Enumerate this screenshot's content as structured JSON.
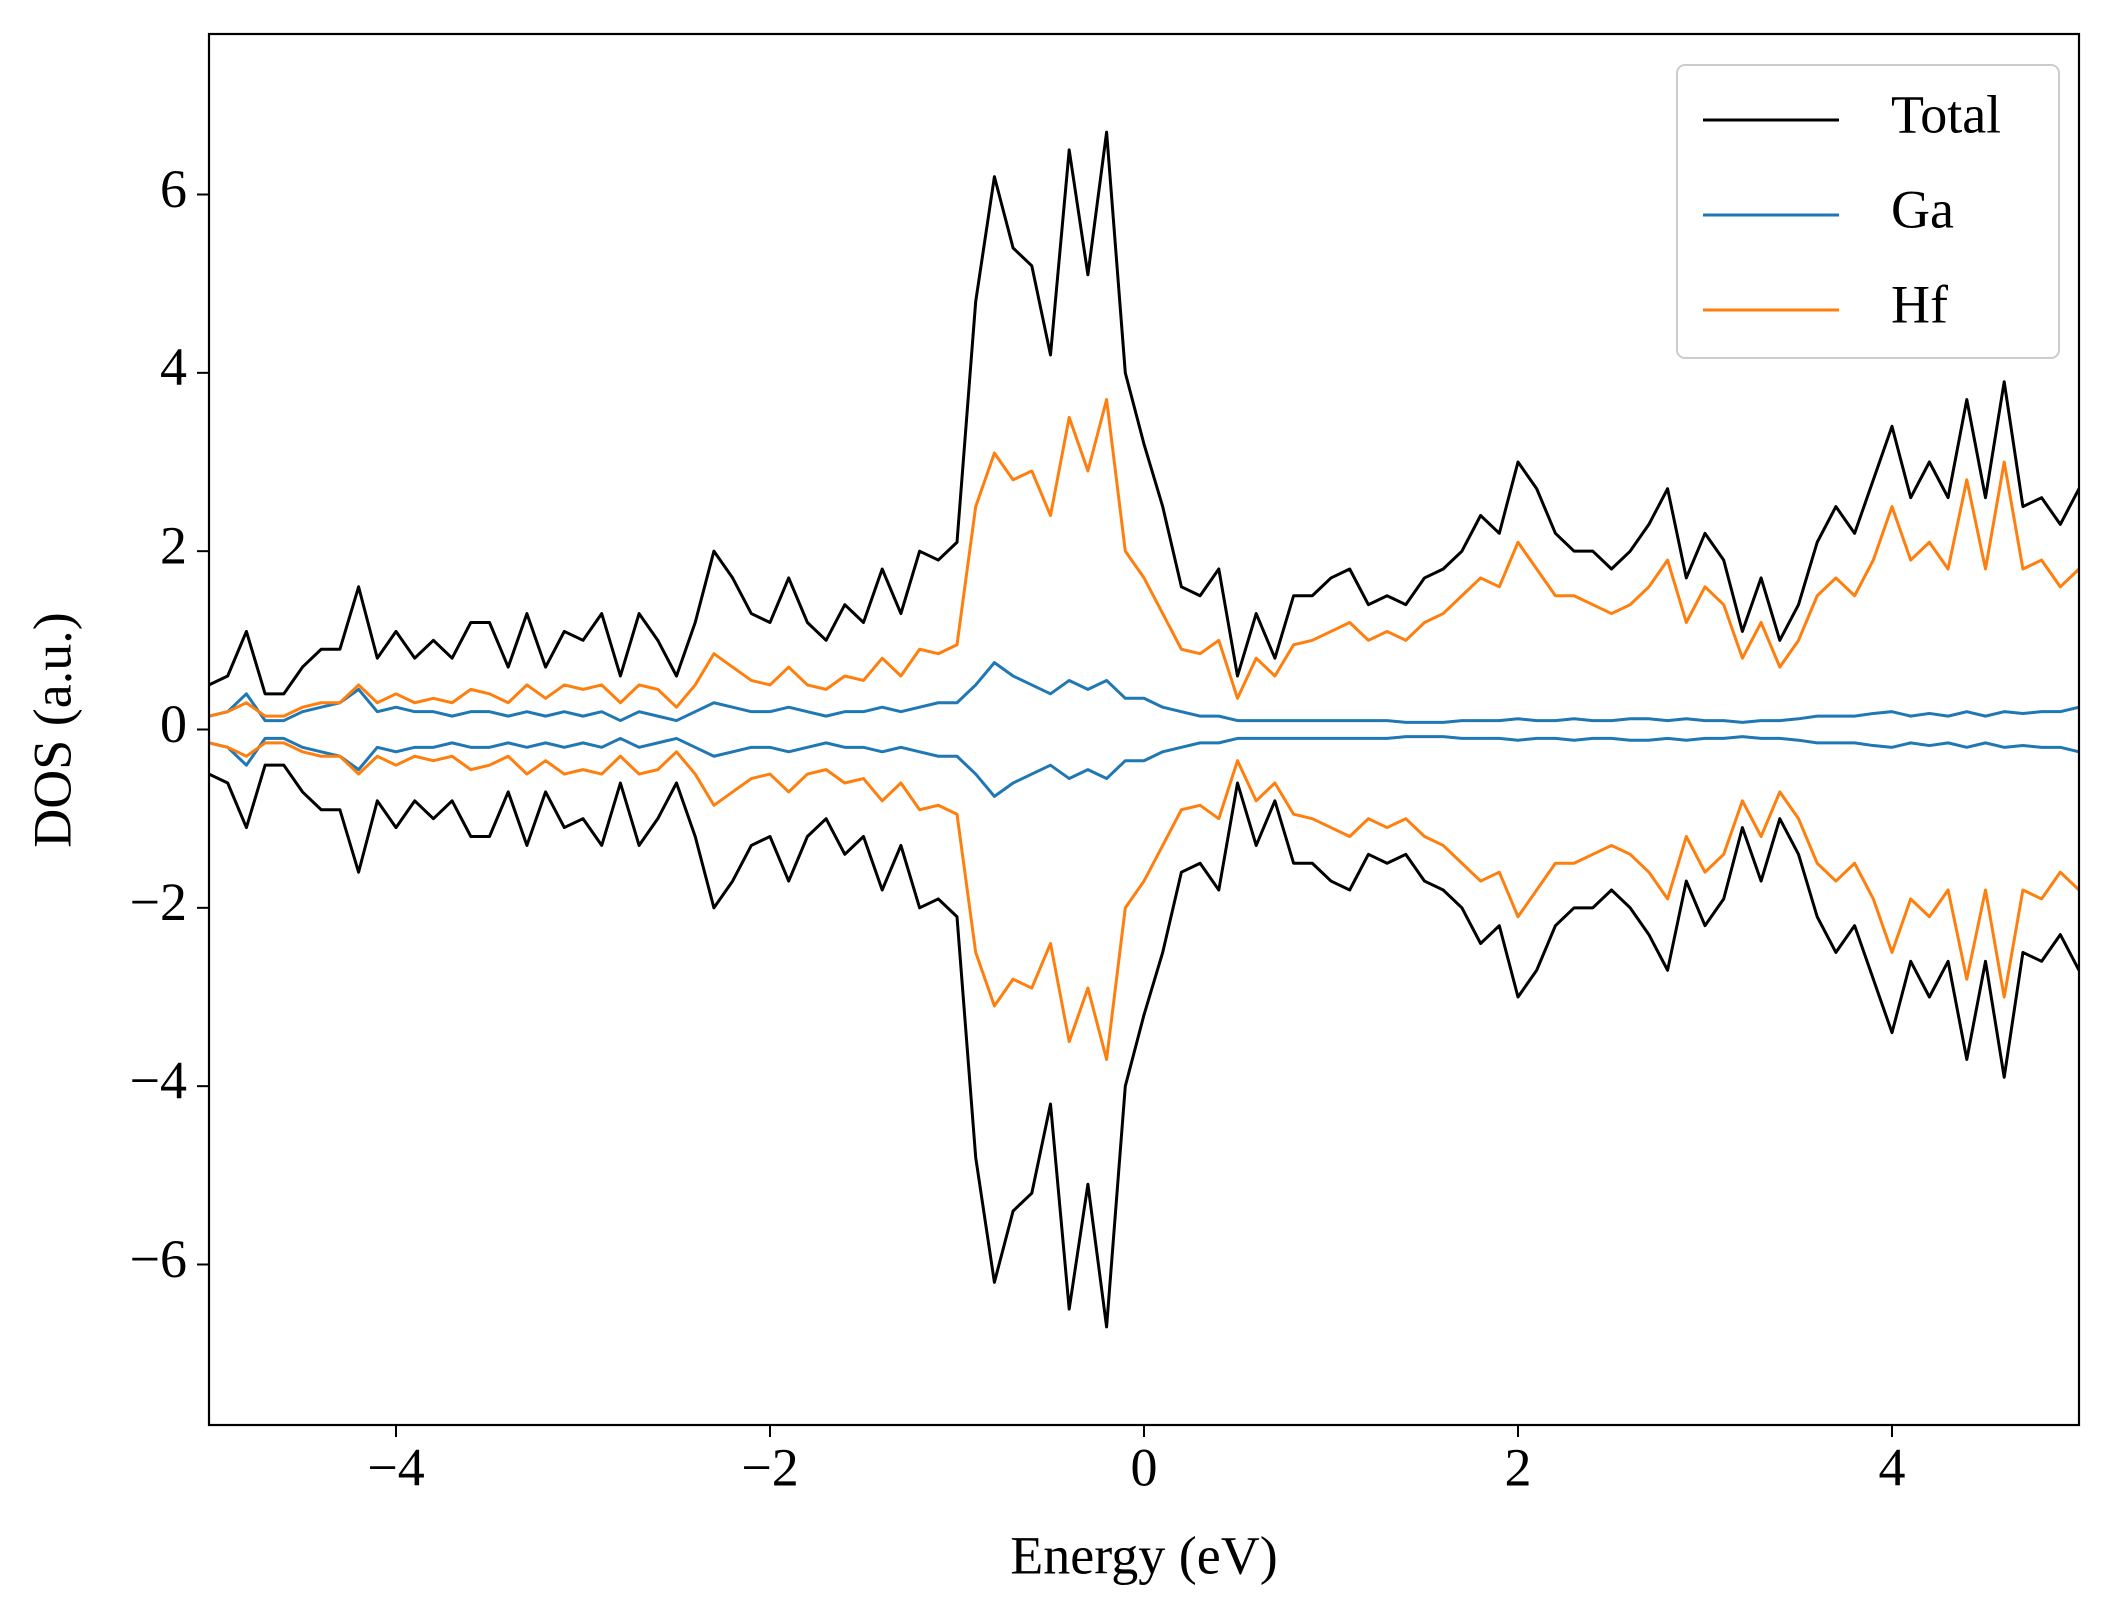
{
  "chart_data": {
    "type": "line",
    "xlabel": "Energy (eV)",
    "ylabel": "DOS (a.u.)",
    "xlim": [
      -5,
      5
    ],
    "ylim": [
      -7.8,
      7.8
    ],
    "xticks": [
      {
        "value": -4,
        "label": "−4"
      },
      {
        "value": -2,
        "label": "−2"
      },
      0,
      2,
      4
    ],
    "yticks": [
      {
        "value": -6,
        "label": "−6"
      },
      {
        "value": -4,
        "label": "−4"
      },
      {
        "value": -2,
        "label": "−2"
      },
      0,
      2,
      4,
      6
    ],
    "legend": "upper right",
    "grid": false,
    "x": [
      -5,
      -4.9,
      -4.8,
      -4.7,
      -4.6,
      -4.5,
      -4.4,
      -4.3,
      -4.2,
      -4.1,
      -4,
      -3.9,
      -3.8,
      -3.7,
      -3.6,
      -3.5,
      -3.4,
      -3.3,
      -3.2,
      -3.1,
      -3,
      -2.9,
      -2.8,
      -2.7,
      -2.6,
      -2.5,
      -2.4,
      -2.3,
      -2.2,
      -2.1,
      -2,
      -1.9,
      -1.8,
      -1.7,
      -1.6,
      -1.5,
      -1.4,
      -1.3,
      -1.2,
      -1.1,
      -1,
      -0.9,
      -0.8,
      -0.7,
      -0.6,
      -0.5,
      -0.4,
      -0.3,
      -0.2,
      -0.1,
      0,
      0.1,
      0.2,
      0.3,
      0.4,
      0.5,
      0.6,
      0.7,
      0.8,
      0.9,
      1,
      1.1,
      1.2,
      1.3,
      1.4,
      1.5,
      1.6,
      1.7,
      1.8,
      1.9,
      2,
      2.1,
      2.2,
      2.3,
      2.4,
      2.5,
      2.6,
      2.7,
      2.8,
      2.9,
      3,
      3.1,
      3.2,
      3.3,
      3.4,
      3.5,
      3.6,
      3.7,
      3.8,
      3.9,
      4,
      4.1,
      4.2,
      4.3,
      4.4,
      4.5,
      4.6,
      4.7,
      4.8,
      4.9,
      5
    ],
    "series": [
      {
        "name": "Total",
        "color": "#000000",
        "values": [
          0.5,
          0.6,
          1.1,
          0.4,
          0.4,
          0.7,
          0.9,
          0.9,
          1.6,
          0.8,
          1.1,
          0.8,
          1.0,
          0.8,
          1.2,
          1.2,
          0.7,
          1.3,
          0.7,
          1.1,
          1.0,
          1.3,
          0.6,
          1.3,
          1.0,
          0.6,
          1.2,
          2.0,
          1.7,
          1.3,
          1.2,
          1.7,
          1.2,
          1.0,
          1.4,
          1.2,
          1.8,
          1.3,
          2.0,
          1.9,
          2.1,
          4.8,
          6.2,
          5.4,
          5.2,
          4.2,
          6.5,
          5.1,
          6.7,
          4.0,
          3.2,
          2.5,
          1.6,
          1.5,
          1.8,
          0.6,
          1.3,
          0.8,
          1.5,
          1.5,
          1.7,
          1.8,
          1.4,
          1.5,
          1.4,
          1.7,
          1.8,
          2.0,
          2.4,
          2.2,
          3.0,
          2.7,
          2.2,
          2.0,
          2.0,
          1.8,
          2.0,
          2.3,
          2.7,
          1.7,
          2.2,
          1.9,
          1.1,
          1.7,
          1.0,
          1.4,
          2.1,
          2.5,
          2.2,
          2.8,
          3.4,
          2.6,
          3.0,
          2.6,
          3.7,
          2.6,
          3.9,
          2.5,
          2.6,
          2.3,
          2.7
        ],
        "down": [
          -0.5,
          -0.6,
          -1.1,
          -0.4,
          -0.4,
          -0.7,
          -0.9,
          -0.9,
          -1.6,
          -0.8,
          -1.1,
          -0.8,
          -1.0,
          -0.8,
          -1.2,
          -1.2,
          -0.7,
          -1.3,
          -0.7,
          -1.1,
          -1.0,
          -1.3,
          -0.6,
          -1.3,
          -1.0,
          -0.6,
          -1.2,
          -2.0,
          -1.7,
          -1.3,
          -1.2,
          -1.7,
          -1.2,
          -1.0,
          -1.4,
          -1.2,
          -1.8,
          -1.3,
          -2.0,
          -1.9,
          -2.1,
          -4.8,
          -6.2,
          -5.4,
          -5.2,
          -4.2,
          -6.5,
          -5.1,
          -6.7,
          -4.0,
          -3.2,
          -2.5,
          -1.6,
          -1.5,
          -1.8,
          -0.6,
          -1.3,
          -0.8,
          -1.5,
          -1.5,
          -1.7,
          -1.8,
          -1.4,
          -1.5,
          -1.4,
          -1.7,
          -1.8,
          -2.0,
          -2.4,
          -2.2,
          -3.0,
          -2.7,
          -2.2,
          -2.0,
          -2.0,
          -1.8,
          -2.0,
          -2.3,
          -2.7,
          -1.7,
          -2.2,
          -1.9,
          -1.1,
          -1.7,
          -1.0,
          -1.4,
          -2.1,
          -2.5,
          -2.2,
          -2.8,
          -3.4,
          -2.6,
          -3.0,
          -2.6,
          -3.7,
          -2.6,
          -3.9,
          -2.5,
          -2.6,
          -2.3,
          -2.7
        ]
      },
      {
        "name": "Ga",
        "color": "#1f77b4",
        "values": [
          0.15,
          0.2,
          0.4,
          0.1,
          0.1,
          0.2,
          0.25,
          0.3,
          0.45,
          0.2,
          0.25,
          0.2,
          0.2,
          0.15,
          0.2,
          0.2,
          0.15,
          0.2,
          0.15,
          0.2,
          0.15,
          0.2,
          0.1,
          0.2,
          0.15,
          0.1,
          0.2,
          0.3,
          0.25,
          0.2,
          0.2,
          0.25,
          0.2,
          0.15,
          0.2,
          0.2,
          0.25,
          0.2,
          0.25,
          0.3,
          0.3,
          0.5,
          0.75,
          0.6,
          0.5,
          0.4,
          0.55,
          0.45,
          0.55,
          0.35,
          0.35,
          0.25,
          0.2,
          0.15,
          0.15,
          0.1,
          0.1,
          0.1,
          0.1,
          0.1,
          0.1,
          0.1,
          0.1,
          0.1,
          0.08,
          0.08,
          0.08,
          0.1,
          0.1,
          0.1,
          0.12,
          0.1,
          0.1,
          0.12,
          0.1,
          0.1,
          0.12,
          0.12,
          0.1,
          0.12,
          0.1,
          0.1,
          0.08,
          0.1,
          0.1,
          0.12,
          0.15,
          0.15,
          0.15,
          0.18,
          0.2,
          0.15,
          0.18,
          0.15,
          0.2,
          0.15,
          0.2,
          0.18,
          0.2,
          0.2,
          0.25
        ],
        "down": [
          -0.15,
          -0.2,
          -0.4,
          -0.1,
          -0.1,
          -0.2,
          -0.25,
          -0.3,
          -0.45,
          -0.2,
          -0.25,
          -0.2,
          -0.2,
          -0.15,
          -0.2,
          -0.2,
          -0.15,
          -0.2,
          -0.15,
          -0.2,
          -0.15,
          -0.2,
          -0.1,
          -0.2,
          -0.15,
          -0.1,
          -0.2,
          -0.3,
          -0.25,
          -0.2,
          -0.2,
          -0.25,
          -0.2,
          -0.15,
          -0.2,
          -0.2,
          -0.25,
          -0.2,
          -0.25,
          -0.3,
          -0.3,
          -0.5,
          -0.75,
          -0.6,
          -0.5,
          -0.4,
          -0.55,
          -0.45,
          -0.55,
          -0.35,
          -0.35,
          -0.25,
          -0.2,
          -0.15,
          -0.15,
          -0.1,
          -0.1,
          -0.1,
          -0.1,
          -0.1,
          -0.1,
          -0.1,
          -0.1,
          -0.1,
          -0.08,
          -0.08,
          -0.08,
          -0.1,
          -0.1,
          -0.1,
          -0.12,
          -0.1,
          -0.1,
          -0.12,
          -0.1,
          -0.1,
          -0.12,
          -0.12,
          -0.1,
          -0.12,
          -0.1,
          -0.1,
          -0.08,
          -0.1,
          -0.1,
          -0.12,
          -0.15,
          -0.15,
          -0.15,
          -0.18,
          -0.2,
          -0.15,
          -0.18,
          -0.15,
          -0.2,
          -0.15,
          -0.2,
          -0.18,
          -0.2,
          -0.2,
          -0.25
        ]
      },
      {
        "name": "Hf",
        "color": "#ff7f0e",
        "values": [
          0.15,
          0.2,
          0.3,
          0.15,
          0.15,
          0.25,
          0.3,
          0.3,
          0.5,
          0.3,
          0.4,
          0.3,
          0.35,
          0.3,
          0.45,
          0.4,
          0.3,
          0.5,
          0.35,
          0.5,
          0.45,
          0.5,
          0.3,
          0.5,
          0.45,
          0.25,
          0.5,
          0.85,
          0.7,
          0.55,
          0.5,
          0.7,
          0.5,
          0.45,
          0.6,
          0.55,
          0.8,
          0.6,
          0.9,
          0.85,
          0.95,
          2.5,
          3.1,
          2.8,
          2.9,
          2.4,
          3.5,
          2.9,
          3.7,
          2.0,
          1.7,
          1.3,
          0.9,
          0.85,
          1.0,
          0.35,
          0.8,
          0.6,
          0.95,
          1.0,
          1.1,
          1.2,
          1.0,
          1.1,
          1.0,
          1.2,
          1.3,
          1.5,
          1.7,
          1.6,
          2.1,
          1.8,
          1.5,
          1.5,
          1.4,
          1.3,
          1.4,
          1.6,
          1.9,
          1.2,
          1.6,
          1.4,
          0.8,
          1.2,
          0.7,
          1.0,
          1.5,
          1.7,
          1.5,
          1.9,
          2.5,
          1.9,
          2.1,
          1.8,
          2.8,
          1.8,
          3.0,
          1.8,
          1.9,
          1.6,
          1.8
        ],
        "down": [
          -0.15,
          -0.2,
          -0.3,
          -0.15,
          -0.15,
          -0.25,
          -0.3,
          -0.3,
          -0.5,
          -0.3,
          -0.4,
          -0.3,
          -0.35,
          -0.3,
          -0.45,
          -0.4,
          -0.3,
          -0.5,
          -0.35,
          -0.5,
          -0.45,
          -0.5,
          -0.3,
          -0.5,
          -0.45,
          -0.25,
          -0.5,
          -0.85,
          -0.7,
          -0.55,
          -0.5,
          -0.7,
          -0.5,
          -0.45,
          -0.6,
          -0.55,
          -0.8,
          -0.6,
          -0.9,
          -0.85,
          -0.95,
          -2.5,
          -3.1,
          -2.8,
          -2.9,
          -2.4,
          -3.5,
          -2.9,
          -3.7,
          -2.0,
          -1.7,
          -1.3,
          -0.9,
          -0.85,
          -1.0,
          -0.35,
          -0.8,
          -0.6,
          -0.95,
          -1.0,
          -1.1,
          -1.2,
          -1.0,
          -1.1,
          -1.0,
          -1.2,
          -1.3,
          -1.5,
          -1.7,
          -1.6,
          -2.1,
          -1.8,
          -1.5,
          -1.5,
          -1.4,
          -1.3,
          -1.4,
          -1.6,
          -1.9,
          -1.2,
          -1.6,
          -1.4,
          -0.8,
          -1.2,
          -0.7,
          -1.0,
          -1.5,
          -1.7,
          -1.5,
          -1.9,
          -2.5,
          -1.9,
          -2.1,
          -1.8,
          -2.8,
          -1.8,
          -3.0,
          -1.8,
          -1.9,
          -1.6,
          -1.8
        ]
      }
    ]
  }
}
